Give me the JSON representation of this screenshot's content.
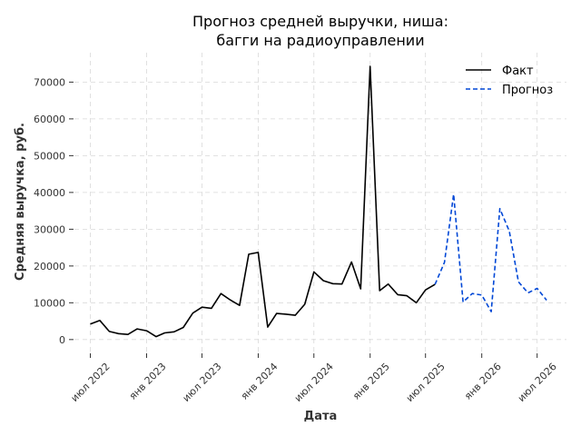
{
  "chart_data": {
    "type": "line",
    "title": [
      "Прогноз средней выручки, ниша:",
      "багги на радиоуправлении"
    ],
    "xlabel": "Дата",
    "ylabel": "Средняя выручка, руб.",
    "ylim": [
      -3500,
      78000
    ],
    "xlim": [
      "2022-05-10",
      "2026-10-05"
    ],
    "yticks": [
      0,
      10000,
      20000,
      30000,
      40000,
      50000,
      60000,
      70000
    ],
    "ytick_labels": [
      "0",
      "10000",
      "20000",
      "30000",
      "40000",
      "50000",
      "60000",
      "70000"
    ],
    "xticks": [
      "2022-07-01",
      "2023-01-01",
      "2023-07-01",
      "2024-01-01",
      "2024-07-01",
      "2025-01-01",
      "2025-07-01",
      "2026-01-01",
      "2026-07-01"
    ],
    "xtick_labels": [
      "июл 2022",
      "янв 2023",
      "июл 2023",
      "янв 2024",
      "июл 2024",
      "янв 2025",
      "июл 2025",
      "янв 2026",
      "июл 2026"
    ],
    "grid": true,
    "legend_position": "top-right",
    "colors": {
      "fact": "#000000",
      "forecast": "#0047d6"
    },
    "series": [
      {
        "name": "Факт",
        "style": "solid",
        "x": [
          "2022-07-01",
          "2022-08-01",
          "2022-09-01",
          "2022-10-01",
          "2022-11-01",
          "2022-12-01",
          "2023-01-01",
          "2023-02-01",
          "2023-03-01",
          "2023-04-01",
          "2023-05-01",
          "2023-06-01",
          "2023-07-01",
          "2023-08-01",
          "2023-09-01",
          "2023-10-01",
          "2023-11-01",
          "2023-12-01",
          "2024-01-01",
          "2024-02-01",
          "2024-03-01",
          "2024-04-01",
          "2024-05-01",
          "2024-06-01",
          "2024-07-01",
          "2024-08-01",
          "2024-09-01",
          "2024-10-01",
          "2024-11-01",
          "2024-12-01",
          "2025-01-01",
          "2025-02-01",
          "2025-03-01",
          "2025-04-01",
          "2025-05-01",
          "2025-06-01",
          "2025-07-01",
          "2025-08-01"
        ],
        "y": [
          4200,
          5200,
          2200,
          1600,
          1400,
          2900,
          2400,
          800,
          1800,
          2100,
          3300,
          7200,
          8800,
          8500,
          12500,
          10800,
          9300,
          23200,
          23700,
          3400,
          7100,
          6900,
          6600,
          9600,
          18400,
          16000,
          15200,
          15100,
          21100,
          13800,
          74300,
          13300,
          15100,
          12200,
          11900,
          10000,
          13500,
          15000
        ]
      },
      {
        "name": "Прогноз",
        "style": "dashed",
        "x": [
          "2025-08-01",
          "2025-09-01",
          "2025-10-01",
          "2025-11-01",
          "2025-12-01",
          "2026-01-01",
          "2026-02-01",
          "2026-03-01",
          "2026-04-01",
          "2026-05-01",
          "2026-06-01",
          "2026-07-01",
          "2026-08-01"
        ],
        "y": [
          15000,
          21000,
          39500,
          10200,
          12500,
          12100,
          7600,
          35600,
          29500,
          15700,
          12700,
          13900,
          10700
        ]
      }
    ]
  }
}
